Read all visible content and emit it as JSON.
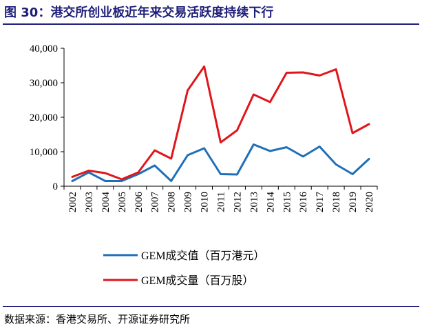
{
  "page": {
    "title": "图 30：港交所创业板近年来交易活跃度持续下行",
    "source": "数据来源：香港交易所、开源证券研究所"
  },
  "colors": {
    "title": "#1f1f7a",
    "series_value": "#1f6fb8",
    "series_volume": "#e0161c"
  },
  "chart_data": {
    "type": "line",
    "title": "",
    "xlabel": "",
    "ylabel": "",
    "ylim": [
      0,
      40000
    ],
    "yticks": [
      0,
      10000,
      20000,
      30000,
      40000
    ],
    "ytick_labels": [
      "0",
      "10,000",
      "20,000",
      "30,000",
      "40,000"
    ],
    "categories": [
      "2002",
      "2003",
      "2004",
      "2005",
      "2006",
      "2007",
      "2008",
      "2009",
      "2010",
      "2011",
      "2012",
      "2013",
      "2014",
      "2015",
      "2016",
      "2017",
      "2018",
      "2019",
      "2020"
    ],
    "series": [
      {
        "name": "GEM成交值（百万港元）",
        "color": "#1f6fb8",
        "values": [
          1500,
          4000,
          1500,
          1500,
          3500,
          6000,
          1500,
          9000,
          11000,
          3500,
          3400,
          12100,
          10200,
          11300,
          8600,
          11500,
          6300,
          3500,
          7900
        ]
      },
      {
        "name": "GEM成交量（百万股）",
        "color": "#e0161c",
        "values": [
          2700,
          4500,
          3800,
          2000,
          4000,
          10400,
          8000,
          27800,
          34700,
          12700,
          16200,
          26600,
          24400,
          32900,
          33000,
          32100,
          33900,
          15400,
          18000
        ]
      }
    ],
    "legend": "bottom",
    "grid": false
  }
}
